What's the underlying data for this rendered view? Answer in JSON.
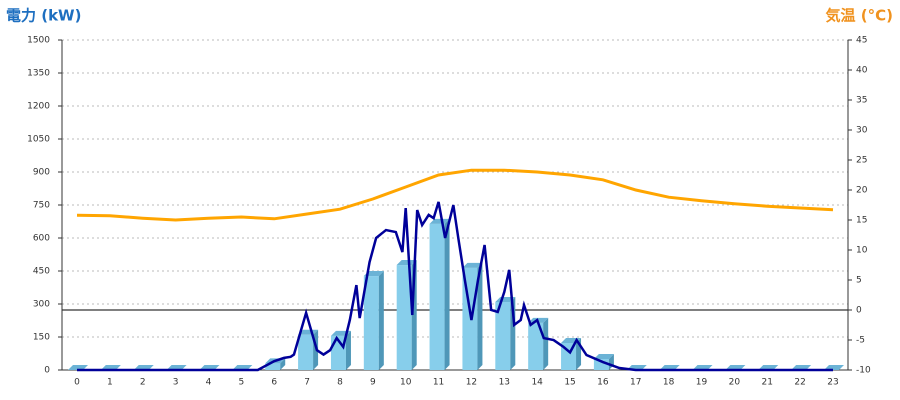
{
  "chart_data": {
    "type": "bar-line",
    "y_title": "電力 (kW)",
    "y2_title": "気温 (°C)",
    "categories": [
      "0",
      "1",
      "2",
      "3",
      "4",
      "5",
      "6",
      "7",
      "8",
      "9",
      "10",
      "11",
      "12",
      "13",
      "14",
      "15",
      "16",
      "17",
      "18",
      "19",
      "20",
      "21",
      "22",
      "23"
    ],
    "ylim": [
      0,
      1500
    ],
    "yticks": [
      0,
      150,
      300,
      450,
      600,
      750,
      900,
      1050,
      1200,
      1350,
      1500
    ],
    "y2lim": [
      -10,
      45
    ],
    "y2ticks": [
      -10,
      -5,
      0,
      5,
      10,
      15,
      20,
      25,
      30,
      35,
      40,
      45
    ],
    "grid": true,
    "bars": {
      "color": "#87ceeb",
      "values": [
        0,
        0,
        0,
        0,
        0,
        0,
        30,
        160,
        155,
        427,
        477,
        664,
        464,
        309,
        214,
        123,
        50,
        0,
        0,
        0,
        0,
        0,
        0,
        0
      ]
    },
    "temperature": {
      "axis": "y2",
      "color": "#ffa500",
      "values": [
        15.8,
        15.7,
        15.3,
        15,
        15.3,
        15.5,
        15.2,
        16,
        16.8,
        18.5,
        20.5,
        22.5,
        23.3,
        23.3,
        23,
        22.5,
        21.7,
        20,
        18.8,
        18.2,
        17.7,
        17.3,
        17,
        16.7
      ]
    },
    "power": {
      "color": "#000099",
      "x": [
        0,
        5.5,
        6.0,
        6.3,
        6.5,
        6.6,
        6.97,
        7.3,
        7.5,
        7.7,
        7.9,
        8.1,
        8.3,
        8.5,
        8.6,
        8.9,
        9.1,
        9.4,
        9.7,
        9.9,
        10.0,
        10.2,
        10.35,
        10.5,
        10.7,
        10.85,
        11.0,
        11.2,
        11.45,
        11.6,
        11.8,
        12.0,
        12.2,
        12.4,
        12.6,
        12.8,
        13.0,
        13.15,
        13.3,
        13.5,
        13.6,
        13.8,
        14.0,
        14.2,
        14.5,
        14.8,
        15.0,
        15.2,
        15.5,
        16.0,
        16.5,
        17,
        23
      ],
      "values": [
        0,
        0,
        40,
        55,
        60,
        70,
        260,
        90,
        70,
        90,
        145,
        105,
        227,
        386,
        236,
        490,
        600,
        636,
        627,
        536,
        736,
        250,
        727,
        659,
        705,
        690,
        764,
        600,
        750,
        600,
        409,
        227,
        409,
        568,
        273,
        264,
        355,
        455,
        205,
        227,
        295,
        205,
        227,
        145,
        136,
        105,
        80,
        136,
        68,
        36,
        9,
        0,
        0
      ]
    }
  }
}
